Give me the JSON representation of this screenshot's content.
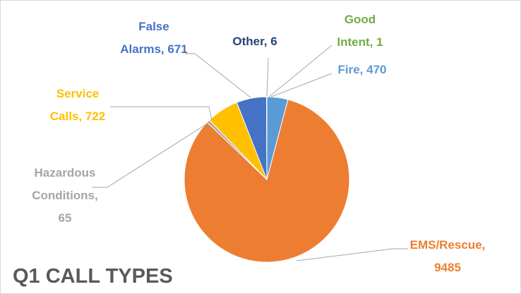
{
  "chart_data": {
    "type": "pie",
    "title": "Q1 CALL TYPES",
    "categories": [
      "Fire",
      "EMS/Rescue",
      "Hazardous Conditions",
      "Service Calls",
      "False Alarms",
      "Other",
      "Good Intent"
    ],
    "values": [
      470,
      9485,
      65,
      722,
      671,
      6,
      1
    ],
    "value_labels": [
      "Fire, 470",
      "EMS/Rescue, 9485",
      "Hazardous Conditions, 65",
      "Service Calls, 722",
      "False Alarms, 671",
      "Other, 6",
      "Good Intent, 1"
    ],
    "colors": [
      "#5b9bd5",
      "#ed7d31",
      "#a5a5a5",
      "#ffc000",
      "#4472c4",
      "#264478",
      "#70ad47"
    ]
  }
}
